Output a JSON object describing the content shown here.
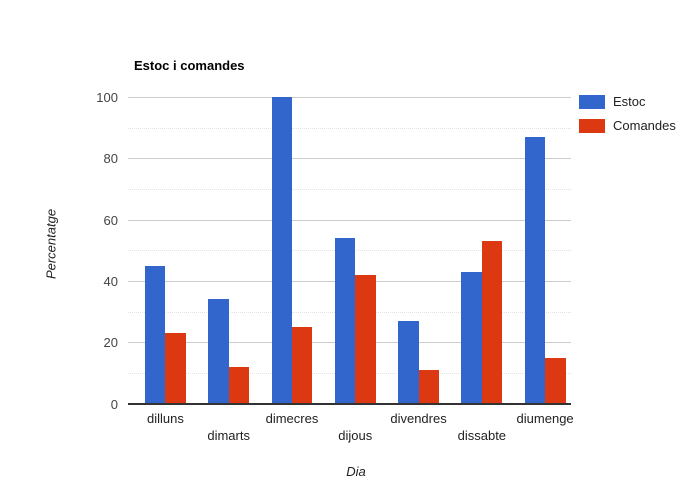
{
  "chart_data": {
    "type": "bar",
    "title": "Estoc i comandes",
    "xlabel": "Dia",
    "ylabel": "Percentatge",
    "categories": [
      "dilluns",
      "dimarts",
      "dimecres",
      "dijous",
      "divendres",
      "dissabte",
      "diumenge"
    ],
    "series": [
      {
        "name": "Estoc",
        "color": "#3366cc",
        "values": [
          45,
          34,
          100,
          54,
          27,
          43,
          87
        ]
      },
      {
        "name": "Comandes",
        "color": "#dc3912",
        "values": [
          23,
          12,
          25,
          42,
          11,
          53,
          15
        ]
      }
    ],
    "ylim": [
      0,
      100
    ],
    "yticks": [
      0,
      20,
      40,
      60,
      80,
      100
    ],
    "minor_gridline_step": 10,
    "grid": true,
    "legend_position": "right",
    "colors": {
      "major_gridline": "#cccccc",
      "minor_gridline": "#e3e3e3",
      "axis_line": "#333333",
      "tick_text": "#444444",
      "label_text": "#222222"
    }
  }
}
